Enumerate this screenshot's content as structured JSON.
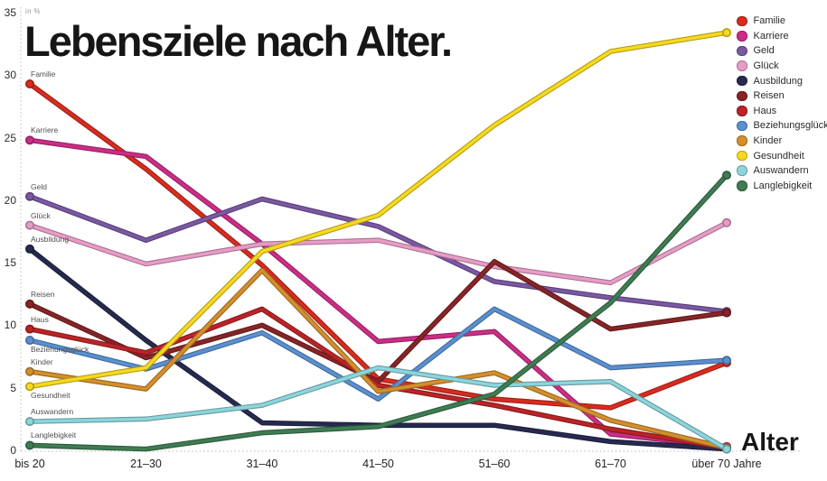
{
  "title": "Lebensziele nach Alter.",
  "axes": {
    "y_unit": "in %",
    "y_ticks": [
      0,
      5,
      10,
      15,
      20,
      25,
      30,
      35
    ],
    "ylim": [
      0,
      35
    ],
    "x_title": "Alter",
    "x_labels": [
      "bis 20",
      "21–30",
      "31–40",
      "41–50",
      "51–60",
      "61–70",
      "über 70 Jahre"
    ],
    "grid": "dotted axis lines only"
  },
  "legend_position": "top-right",
  "chart_data": {
    "type": "line",
    "title": "Lebensziele nach Alter.",
    "xlabel": "Alter",
    "ylabel": "in %",
    "ylim": [
      0,
      35
    ],
    "categories": [
      "bis 20",
      "21–30",
      "31–40",
      "41–50",
      "51–60",
      "61–70",
      "über 70 Jahre"
    ],
    "series": [
      {
        "name": "Familie",
        "color": "#d92b1f",
        "label_position": "above",
        "values": [
          29.3,
          22.5,
          14.8,
          5.7,
          4.1,
          3.4,
          7.0
        ]
      },
      {
        "name": "Karriere",
        "color": "#cc2d86",
        "label_position": "above",
        "values": [
          24.8,
          23.5,
          16.5,
          8.7,
          9.5,
          1.3,
          0.3
        ]
      },
      {
        "name": "Geld",
        "color": "#7b58a3",
        "label_position": "above",
        "values": [
          20.3,
          16.8,
          20.1,
          17.9,
          13.5,
          12.2,
          11.1
        ]
      },
      {
        "name": "Glück",
        "color": "#e79cc6",
        "label_position": "above",
        "values": [
          18.0,
          14.9,
          16.5,
          16.8,
          14.7,
          13.4,
          18.2
        ]
      },
      {
        "name": "Ausbildung",
        "color": "#272a4f",
        "label_position": "above",
        "values": [
          16.1,
          8.8,
          2.2,
          2.0,
          2.0,
          0.7,
          0.1
        ]
      },
      {
        "name": "Reisen",
        "color": "#872426",
        "label_position": "above",
        "values": [
          11.7,
          7.4,
          10.0,
          5.5,
          15.1,
          9.7,
          11.0
        ]
      },
      {
        "name": "Haus",
        "color": "#bb2327",
        "label_position": "above",
        "values": [
          9.7,
          7.8,
          11.3,
          5.2,
          3.6,
          1.7,
          0.2
        ]
      },
      {
        "name": "Beziehungsglück",
        "color": "#5a90d1",
        "label_position": "below",
        "values": [
          8.8,
          6.5,
          9.4,
          4.1,
          11.3,
          6.6,
          7.2
        ]
      },
      {
        "name": "Kinder",
        "color": "#d48f2c",
        "label_position": "above",
        "values": [
          6.3,
          4.9,
          14.4,
          4.7,
          6.2,
          2.4,
          0.2
        ]
      },
      {
        "name": "Gesundheit",
        "color": "#f7d91e",
        "label_position": "below",
        "values": [
          5.1,
          6.6,
          15.9,
          18.8,
          26.0,
          31.9,
          33.4
        ]
      },
      {
        "name": "Auswandern",
        "color": "#8cd5dc",
        "label_position": "above",
        "values": [
          2.3,
          2.5,
          3.6,
          6.6,
          5.2,
          5.5,
          0.1
        ]
      },
      {
        "name": "Langlebigkeit",
        "color": "#3e7c52",
        "label_position": "above",
        "values": [
          0.4,
          0.1,
          1.4,
          1.9,
          4.5,
          11.8,
          22.0
        ]
      }
    ]
  }
}
